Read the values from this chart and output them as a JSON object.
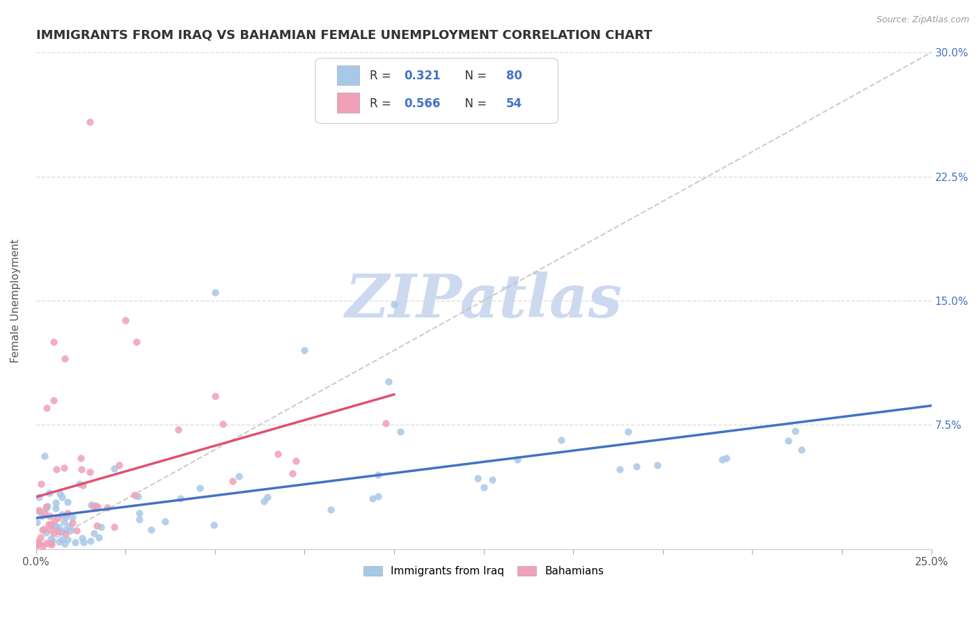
{
  "title": "IMMIGRANTS FROM IRAQ VS BAHAMIAN FEMALE UNEMPLOYMENT CORRELATION CHART",
  "source": "Source: ZipAtlas.com",
  "ylabel": "Female Unemployment",
  "x_series1_label": "Immigrants from Iraq",
  "x_series2_label": "Bahamians",
  "series1_color": "#a8c8e8",
  "series2_color": "#f0a0b8",
  "trend1_color": "#4472c4",
  "trend2_color": "#e05070",
  "R1": 0.321,
  "N1": 80,
  "R2": 0.566,
  "N2": 54,
  "xlim": [
    0.0,
    0.25
  ],
  "ylim": [
    0.0,
    0.3
  ],
  "xticks": [
    0.0,
    0.025,
    0.05,
    0.075,
    0.1,
    0.125,
    0.15,
    0.175,
    0.2,
    0.225,
    0.25
  ],
  "yticks": [
    0.0,
    0.075,
    0.15,
    0.225,
    0.3
  ],
  "xticklabels_show": [
    "0.0%",
    "25.0%"
  ],
  "xticklabels_pos": [
    0.0,
    0.25
  ],
  "yticklabels": [
    "",
    "7.5%",
    "15.0%",
    "22.5%",
    "30.0%"
  ],
  "background_color": "#ffffff",
  "grid_color": "#dddddd",
  "watermark_text": "ZIPatlas",
  "watermark_color": "#ccd9ee",
  "title_fontsize": 13,
  "axis_label_fontsize": 11,
  "tick_fontsize": 11,
  "legend_fontsize": 13
}
